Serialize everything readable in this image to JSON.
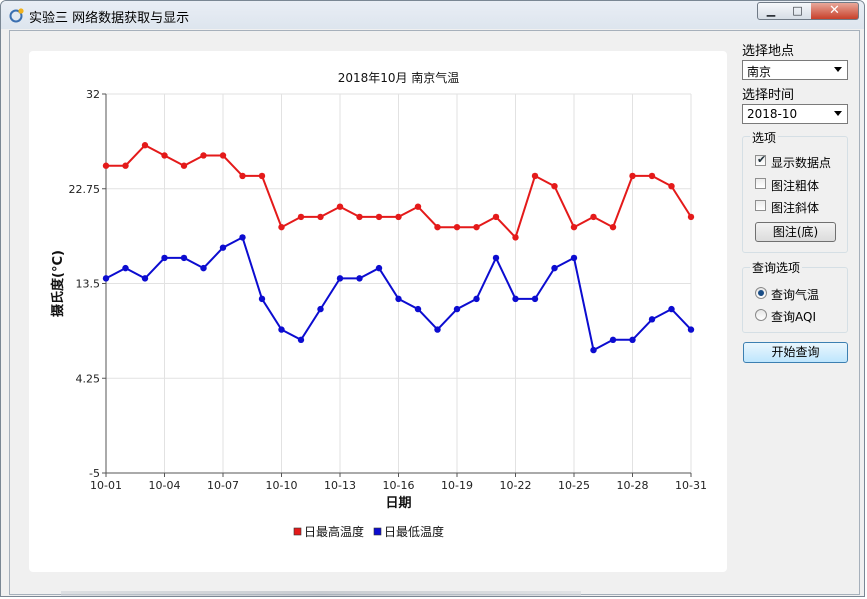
{
  "window": {
    "title": "实验三 网络数据获取与显示",
    "minimize": "▁",
    "maximize": "□",
    "close": "✕"
  },
  "controls": {
    "location_label": "选择地点",
    "location_value": "南京",
    "time_label": "选择时间",
    "time_value": "2018-10",
    "options_group": "选项",
    "show_points": {
      "label": "显示数据点",
      "checked": true
    },
    "legend_bold": {
      "label": "图注粗体",
      "checked": false
    },
    "legend_italic": {
      "label": "图注斜体",
      "checked": false
    },
    "legend_button": "图注(底)",
    "query_group": "查询选项",
    "query_temp": {
      "label": "查询气温",
      "selected": true
    },
    "query_aqi": {
      "label": "查询AQI",
      "selected": false
    },
    "start_button": "开始查询"
  },
  "chart_data": {
    "type": "line",
    "title": "2018年10月 南京气温",
    "xlabel": "日期",
    "ylabel": "摄氏度(°C)",
    "ylim": [
      -5,
      32
    ],
    "yticks": [
      "32",
      "22.75",
      "13.5",
      "4.25",
      "-5"
    ],
    "xticks": [
      "10-01",
      "10-04",
      "10-07",
      "10-10",
      "10-13",
      "10-16",
      "10-19",
      "10-22",
      "10-25",
      "10-28",
      "10-31"
    ],
    "x": [
      "10-01",
      "10-02",
      "10-03",
      "10-04",
      "10-05",
      "10-06",
      "10-07",
      "10-08",
      "10-09",
      "10-10",
      "10-11",
      "10-12",
      "10-13",
      "10-14",
      "10-15",
      "10-16",
      "10-17",
      "10-18",
      "10-19",
      "10-20",
      "10-21",
      "10-22",
      "10-23",
      "10-24",
      "10-25",
      "10-26",
      "10-27",
      "10-28",
      "10-29",
      "10-30",
      "10-31"
    ],
    "series": [
      {
        "name": "日最高温度",
        "color": "#e41a1a",
        "values": [
          25,
          25,
          27,
          26,
          25,
          26,
          26,
          24,
          24,
          19,
          20,
          20,
          21,
          20,
          20,
          20,
          21,
          19,
          19,
          19,
          20,
          18,
          24,
          23,
          19,
          20,
          19,
          24,
          24,
          23,
          20
        ]
      },
      {
        "name": "日最低温度",
        "color": "#0c0cd0",
        "values": [
          14,
          15,
          14,
          16,
          16,
          15,
          17,
          18,
          12,
          9,
          8,
          11,
          14,
          14,
          15,
          12,
          11,
          9,
          11,
          12,
          16,
          12,
          12,
          15,
          16,
          7,
          8,
          8,
          10,
          11,
          9
        ]
      }
    ],
    "grid": true,
    "legend": "bottom"
  }
}
